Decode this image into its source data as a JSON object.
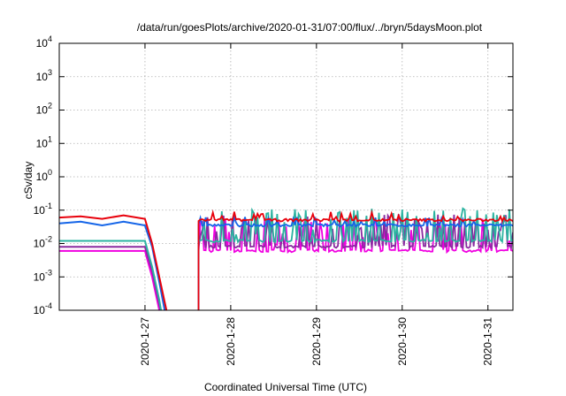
{
  "chart_data": {
    "type": "line",
    "title": "/data/run/goesPlots/archive/2020-01-31/07:00/flux/../bryn/5daysMoon.plot",
    "xlabel": "Coordinated Universal Time (UTC)",
    "ylabel": "cSv/day",
    "yscale": "log",
    "ylim": [
      0.0001,
      10000
    ],
    "y_ticks": [
      {
        "value": 0.0001,
        "base": "10",
        "exp": "-4"
      },
      {
        "value": 0.001,
        "base": "10",
        "exp": "-3"
      },
      {
        "value": 0.01,
        "base": "10",
        "exp": "-2"
      },
      {
        "value": 0.1,
        "base": "10",
        "exp": "-1"
      },
      {
        "value": 1,
        "base": "10",
        "exp": "0"
      },
      {
        "value": 10,
        "base": "10",
        "exp": "1"
      },
      {
        "value": 100,
        "base": "10",
        "exp": "2"
      },
      {
        "value": 1000,
        "base": "10",
        "exp": "3"
      },
      {
        "value": 10000,
        "base": "10",
        "exp": "4"
      }
    ],
    "xlim": [
      "2020-01-26 00:00",
      "2020-01-31 07:00"
    ],
    "x_ticks": [
      "2020-1-27",
      "2020-1-28",
      "2020-1-29",
      "2020-1-30",
      "2020-1-31"
    ],
    "grid": true,
    "notes": "Data gap between approx. 2020-01-27 01:00 and 2020-01-27 15:00; before the gap all series decay steeply below 1e-4.",
    "series": [
      {
        "color": "#e8000b",
        "base": 0.05,
        "points": [
          [
            "2020-01-26 00:00",
            0.06
          ],
          [
            "2020-01-26 06:00",
            0.065
          ],
          [
            "2020-01-26 12:00",
            0.055
          ],
          [
            "2020-01-26 18:00",
            0.07
          ],
          [
            "2020-01-27 00:00",
            0.055
          ],
          [
            "2020-01-27 02:00",
            0.01
          ],
          [
            "2020-01-27 04:00",
            0.001
          ],
          [
            "2020-01-27 06:00",
            0.0001
          ]
        ]
      },
      {
        "color": "#1565e8",
        "base": 0.035,
        "points": [
          [
            "2020-01-26 00:00",
            0.04
          ],
          [
            "2020-01-26 06:00",
            0.045
          ],
          [
            "2020-01-26 12:00",
            0.035
          ],
          [
            "2020-01-26 18:00",
            0.045
          ],
          [
            "2020-01-27 00:00",
            0.035
          ],
          [
            "2020-01-27 02:00",
            0.008
          ],
          [
            "2020-01-27 04:00",
            0.0007
          ],
          [
            "2020-01-27 05:30",
            0.0001
          ]
        ]
      },
      {
        "color": "#2ab3a0",
        "base": 0.012,
        "points": [
          [
            "2020-01-26 00:00",
            0.012
          ],
          [
            "2020-01-26 12:00",
            0.012
          ],
          [
            "2020-01-27 00:00",
            0.012
          ],
          [
            "2020-01-27 02:00",
            0.002
          ],
          [
            "2020-01-27 04:00",
            0.0002
          ],
          [
            "2020-01-27 04:30",
            0.0001
          ]
        ]
      },
      {
        "color": "#8a2aa0",
        "base": 0.008,
        "points": [
          [
            "2020-01-26 00:00",
            0.008
          ],
          [
            "2020-01-26 12:00",
            0.008
          ],
          [
            "2020-01-27 00:00",
            0.008
          ],
          [
            "2020-01-27 02:00",
            0.0015
          ],
          [
            "2020-01-27 04:00",
            0.00015
          ],
          [
            "2020-01-27 04:20",
            0.0001
          ]
        ]
      },
      {
        "color": "#f000e0",
        "base": 0.006,
        "points": [
          [
            "2020-01-26 00:00",
            0.006
          ],
          [
            "2020-01-26 12:00",
            0.006
          ],
          [
            "2020-01-27 00:00",
            0.006
          ],
          [
            "2020-01-27 02:00",
            0.001
          ],
          [
            "2020-01-27 04:00",
            0.0001
          ]
        ]
      }
    ]
  }
}
